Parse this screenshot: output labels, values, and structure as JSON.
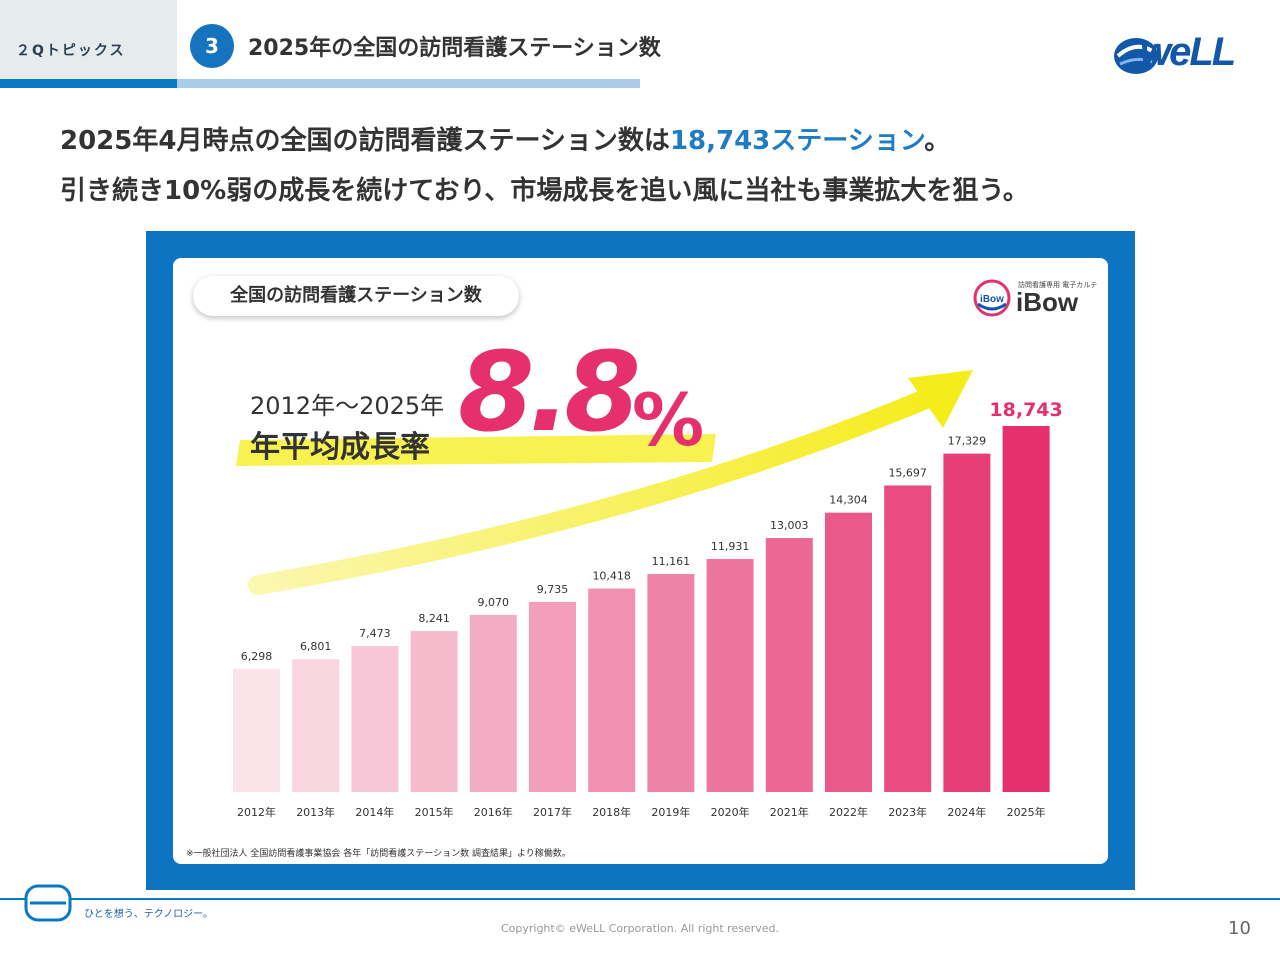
{
  "header": {
    "section_label": "２Qトピックス",
    "topic_number": "3",
    "title": "2025年の全国の訪問看護ステーション数"
  },
  "brand": {
    "logo_text": "weLL"
  },
  "lead": {
    "line1_prefix": "2025年4月時点の全国の訪問看護ステーション数は",
    "line1_accent": "18,743ステーション",
    "line1_suffix": "。",
    "line2": "引き続き10%弱の成長を続けており、市場成長を追い風に当社も事業拡大を狙う。"
  },
  "figure": {
    "pill_title": "全国の訪問看護ステーション数",
    "ibow_subtitle": "訪問看護専用 電子カルテ",
    "ibow_small": "iBow",
    "ibow_word": "iBow",
    "cagr_years": "2012年～2025年",
    "cagr_label": "年平均成長率",
    "cagr_value": "8.8",
    "cagr_unit": "%",
    "note": "※一般社団法人 全国訪問看護事業協会 各年「訪問看護ステーション数 調査結果」より稼働数。"
  },
  "chart_data": {
    "type": "bar",
    "title": "全国の訪問看護ステーション数",
    "categories": [
      "2012年",
      "2013年",
      "2014年",
      "2015年",
      "2016年",
      "2017年",
      "2018年",
      "2019年",
      "2020年",
      "2021年",
      "2022年",
      "2023年",
      "2024年",
      "2025年"
    ],
    "values": [
      6298,
      6801,
      7473,
      8241,
      9070,
      9735,
      10418,
      11161,
      11931,
      13003,
      14304,
      15697,
      17329,
      18743
    ],
    "value_labels": [
      "6,298",
      "6,801",
      "7,473",
      "8,241",
      "9,070",
      "9,735",
      "10,418",
      "11,161",
      "11,931",
      "13,003",
      "14,304",
      "15,697",
      "17,329",
      "18,743"
    ],
    "bar_color_start": "#fbe3ea",
    "bar_color_end": "#e5306d",
    "highlight_label_color": "#e5306d",
    "arrow_color": "#f7f033",
    "grid": false
  },
  "footer": {
    "tagline": "ひとを想う、テクノロジー。",
    "copyright": "Copyright© eWeLL Corporation. All right reserved.",
    "page_number": "10"
  }
}
